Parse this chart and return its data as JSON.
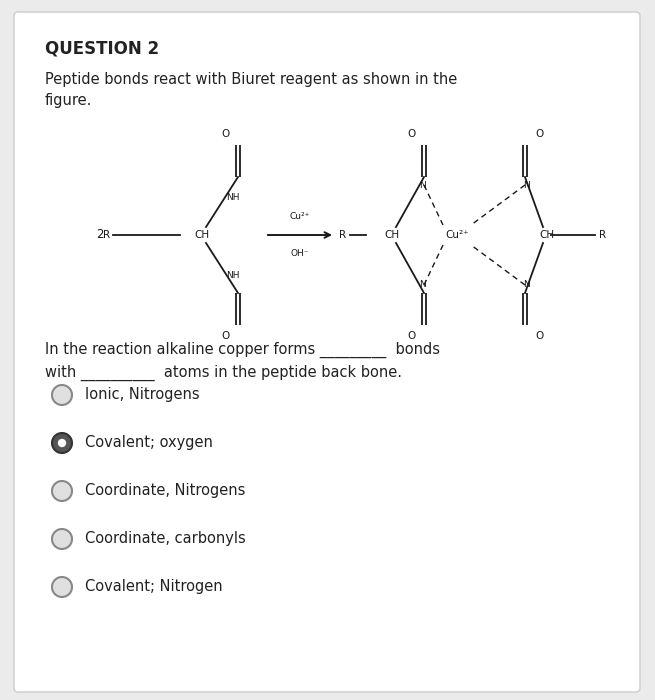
{
  "title": "QUESTION 2",
  "intro_text": "Peptide bonds react with Biuret reagent as shown in the\nfigure.",
  "question_text": "In the reaction alkaline copper forms _________  bonds\nwith __________  atoms in the peptide back bone.",
  "options": [
    {
      "text": "Ionic, Nitrogens",
      "selected": false
    },
    {
      "text": "Covalent; oxygen",
      "selected": true
    },
    {
      "text": "Coordinate, Nitrogens",
      "selected": false
    },
    {
      "text": "Coordinate, carbonyls",
      "selected": false
    },
    {
      "text": "Covalent; Nitrogen",
      "selected": false
    }
  ],
  "bg_color": "#ebebeb",
  "card_color": "#ffffff",
  "text_color": "#222222",
  "selected_fill": "#444444",
  "unselected_fill": "#e0e0e0",
  "title_fontsize": 12,
  "body_fontsize": 10.5,
  "option_fontsize": 10.5,
  "diag_fontsize": 7.5
}
